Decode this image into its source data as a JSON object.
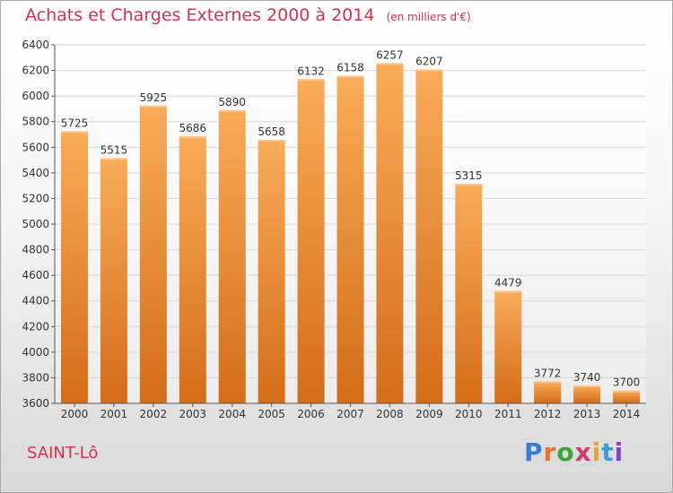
{
  "title": "Achats et Charges Externes 2000 à 2014",
  "unit_note": "(en milliers d'€)",
  "city": "SAINT-Lô",
  "logo": {
    "letters": [
      "P",
      "r",
      "o",
      "x",
      "i",
      "t",
      "i"
    ],
    "colors": [
      "#3a7bd5",
      "#e8722c",
      "#3aa63a",
      "#d23a6e",
      "#e8a32c",
      "#3a9ad5",
      "#8a3ad5"
    ]
  },
  "colors": {
    "title": "#d2324e",
    "bar_light": "#f9ac59",
    "bar_dark": "#d46c17",
    "grid": "#d6d6d6"
  },
  "chart_data": {
    "type": "bar",
    "title": "Achats et Charges Externes 2000 à 2014",
    "subtitle": "(en milliers d'€)",
    "categories": [
      "2000",
      "2001",
      "2002",
      "2003",
      "2004",
      "2005",
      "2006",
      "2007",
      "2008",
      "2009",
      "2010",
      "2011",
      "2012",
      "2013",
      "2014"
    ],
    "values": [
      5725,
      5515,
      5925,
      5686,
      5890,
      5658,
      6132,
      6158,
      6257,
      6207,
      5315,
      4479,
      3772,
      3740,
      3700
    ],
    "ylim": [
      3600,
      6400
    ],
    "yticks": [
      3600,
      3800,
      4000,
      4200,
      4400,
      4600,
      4800,
      5000,
      5200,
      5400,
      5600,
      5800,
      6000,
      6200,
      6400
    ],
    "grid": true,
    "xlabel": "",
    "ylabel": ""
  }
}
